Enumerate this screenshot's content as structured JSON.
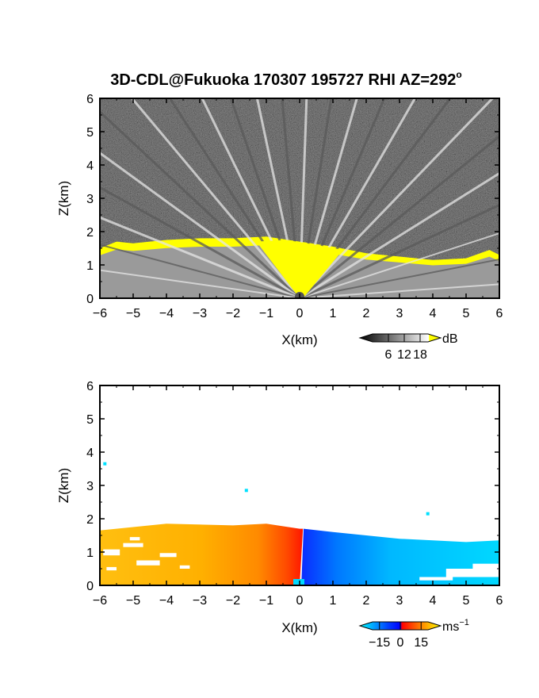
{
  "title": "3D-CDL@Fukuoka 170307 195727 RHI AZ=292",
  "title_superscript": "o",
  "chart_data": [
    {
      "type": "heatmap",
      "panel": "top",
      "field": "backscatter intensity",
      "xlabel": "X(km)",
      "ylabel": "Z(km)",
      "xlim": [
        -6,
        6
      ],
      "ylim": [
        0,
        6
      ],
      "xticks": [
        "-6",
        "-5",
        "-4",
        "-3",
        "-2",
        "-1",
        "0",
        "1",
        "2",
        "3",
        "4",
        "5",
        "6"
      ],
      "yticks": [
        "0",
        "1",
        "2",
        "3",
        "4",
        "5",
        "6"
      ],
      "colorbar": {
        "unit": "dB",
        "ticks": [
          "6",
          "12",
          "18"
        ],
        "tick_values": [
          6,
          12,
          18
        ],
        "range": [
          0,
          21
        ],
        "colors": [
          "#000000",
          "#ffffff",
          "#ffff00"
        ]
      },
      "echo_top_km": [
        {
          "x": -6,
          "z": 1.5
        },
        {
          "x": -5.5,
          "z": 1.7
        },
        {
          "x": -5,
          "z": 1.65
        },
        {
          "x": -4,
          "z": 1.75
        },
        {
          "x": -3,
          "z": 1.8
        },
        {
          "x": -2,
          "z": 1.8
        },
        {
          "x": -1,
          "z": 1.85
        },
        {
          "x": 0,
          "z": 1.7
        },
        {
          "x": 1,
          "z": 1.55
        },
        {
          "x": 2,
          "z": 1.35
        },
        {
          "x": 3,
          "z": 1.25
        },
        {
          "x": 4,
          "z": 1.15
        },
        {
          "x": 5,
          "z": 1.2
        },
        {
          "x": 5.7,
          "z": 1.45
        },
        {
          "x": 6,
          "z": 1.3
        }
      ]
    },
    {
      "type": "heatmap",
      "panel": "bottom",
      "field": "radial velocity",
      "xlabel": "X(km)",
      "ylabel": "Z(km)",
      "xlim": [
        -6,
        6
      ],
      "ylim": [
        0,
        6
      ],
      "xticks": [
        "-6",
        "-5",
        "-4",
        "-3",
        "-2",
        "-1",
        "0",
        "1",
        "2",
        "3",
        "4",
        "5",
        "6"
      ],
      "yticks": [
        "0",
        "1",
        "2",
        "3",
        "4",
        "5",
        "6"
      ],
      "colorbar": {
        "unit": "ms",
        "unit_superscript": "−1",
        "ticks": [
          "−15",
          "0",
          "15"
        ],
        "tick_values": [
          -15,
          0,
          15
        ],
        "range": [
          -20,
          20
        ],
        "colors": [
          "#00ffff",
          "#0033ff",
          "#ff0000",
          "#ffff00"
        ]
      },
      "echo_top_km": [
        {
          "x": -6,
          "z": 1.65
        },
        {
          "x": -4,
          "z": 1.85
        },
        {
          "x": -2,
          "z": 1.8
        },
        {
          "x": -1,
          "z": 1.85
        },
        {
          "x": 0,
          "z": 1.7
        },
        {
          "x": 1,
          "z": 1.6
        },
        {
          "x": 2,
          "z": 1.5
        },
        {
          "x": 3,
          "z": 1.4
        },
        {
          "x": 4,
          "z": 1.35
        },
        {
          "x": 5,
          "z": 1.3
        },
        {
          "x": 6,
          "z": 1.35
        }
      ],
      "velocity_by_x_ms": [
        {
          "x": -6,
          "v": 10
        },
        {
          "x": -3,
          "v": 9
        },
        {
          "x": -1,
          "v": 5
        },
        {
          "x": 0,
          "v": 1
        },
        {
          "x": 0.1,
          "v": -17
        },
        {
          "x": 2,
          "v": -12
        },
        {
          "x": 6,
          "v": -8
        }
      ],
      "isolated_echoes": [
        {
          "x": -5.85,
          "z": 3.65,
          "v": -8
        },
        {
          "x": -1.6,
          "z": 2.85,
          "v": -8
        },
        {
          "x": 3.85,
          "z": 2.15,
          "v": -8
        }
      ]
    }
  ]
}
